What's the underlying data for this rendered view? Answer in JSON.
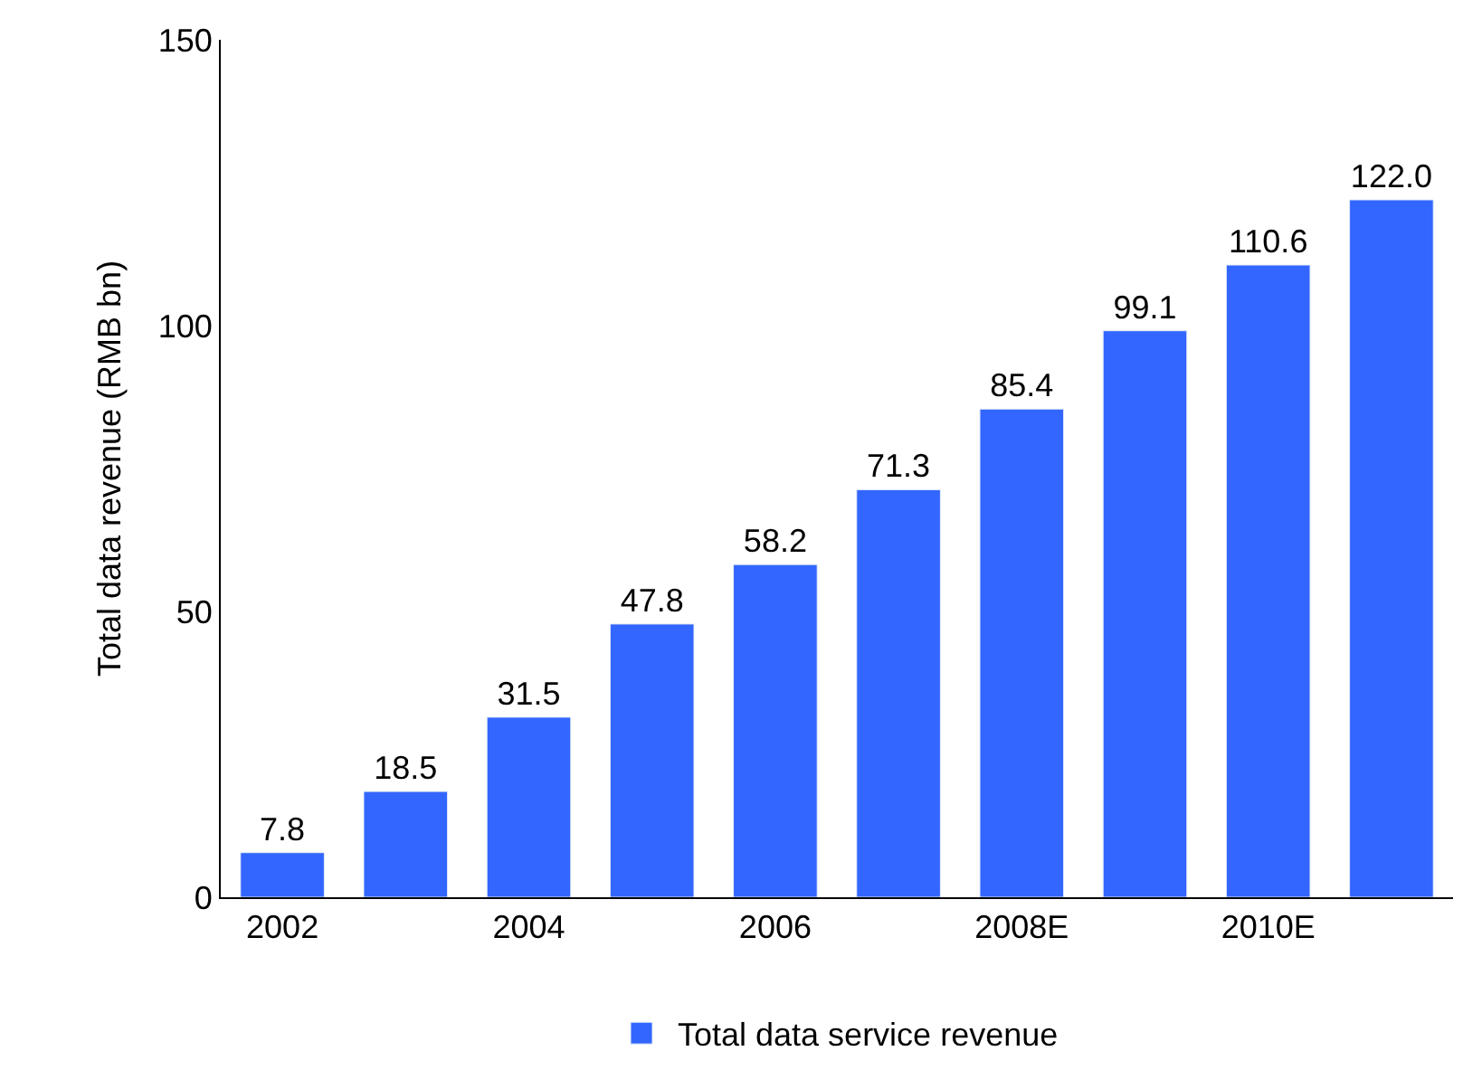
{
  "chart_data": {
    "type": "bar",
    "ylabel": "Total data revenue (RMB bn)",
    "categories": [
      "2002",
      null,
      "2004",
      null,
      "2006",
      null,
      "2008E",
      null,
      "2010E",
      null
    ],
    "series": [
      {
        "name": "Total data service revenue",
        "color": "#3366ff",
        "values": [
          7.8,
          18.5,
          31.5,
          47.8,
          58.2,
          71.3,
          85.4,
          99.1,
          110.6,
          122.0
        ],
        "value_labels": [
          "7.8",
          "18.5",
          "31.5",
          "47.8",
          "58.2",
          "71.3",
          "85.4",
          "99.1",
          "110.6",
          "122.0"
        ]
      }
    ],
    "ylim": [
      0,
      150
    ],
    "yticks": [
      0,
      50,
      100,
      150
    ],
    "legend": "bottom"
  }
}
